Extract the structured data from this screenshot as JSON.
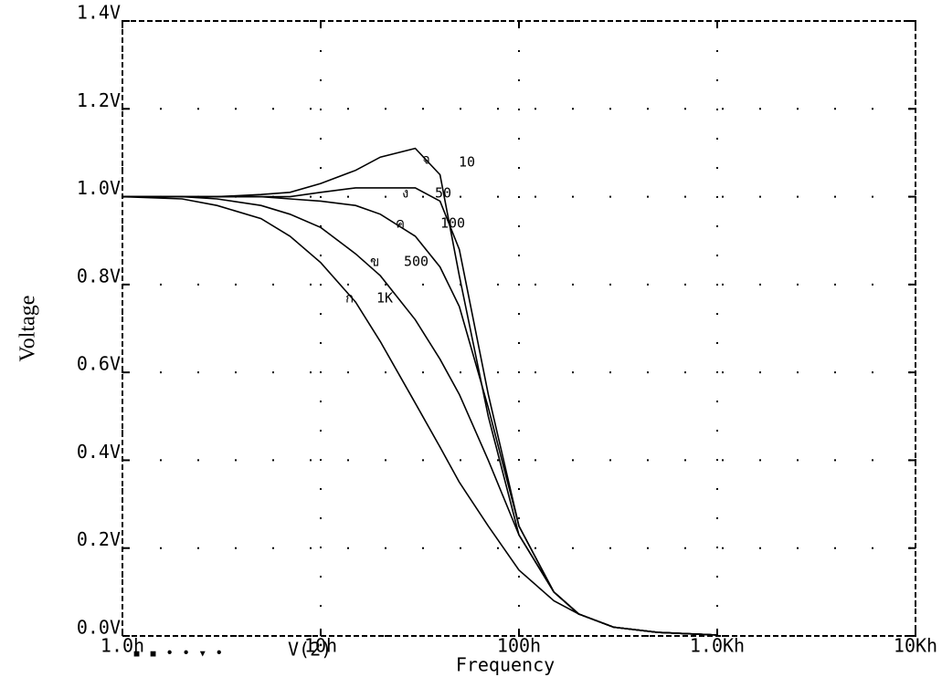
{
  "chart_data": {
    "type": "line",
    "xlabel": "Frequency",
    "ylabel": "Voltage",
    "xscale": "log",
    "x": [
      1,
      2,
      3,
      5,
      7,
      10,
      15,
      20,
      30,
      40,
      50,
      70,
      100,
      150,
      200,
      300,
      500,
      1000
    ],
    "series": [
      {
        "name": "10",
        "marker_label": "จ",
        "color": "#000000",
        "values": [
          1,
          1,
          1,
          1.005,
          1.01,
          1.03,
          1.06,
          1.09,
          1.11,
          1.05,
          0.82,
          0.5,
          0.23,
          0.1,
          0.05,
          0.02,
          0.008,
          0.002
        ]
      },
      {
        "name": "50",
        "marker_label": "ง",
        "color": "#000000",
        "values": [
          1,
          1,
          1,
          1,
          1,
          1.01,
          1.02,
          1.02,
          1.02,
          0.99,
          0.88,
          0.55,
          0.25,
          0.1,
          0.05,
          0.02,
          0.008,
          0.002
        ]
      },
      {
        "name": "100",
        "marker_label": "ค",
        "color": "#000000",
        "values": [
          1,
          1,
          1,
          1,
          0.995,
          0.99,
          0.98,
          0.96,
          0.91,
          0.84,
          0.75,
          0.52,
          0.25,
          0.1,
          0.05,
          0.02,
          0.008,
          0.002
        ]
      },
      {
        "name": "500",
        "marker_label": "ข",
        "color": "#000000",
        "values": [
          1,
          1,
          0.995,
          0.98,
          0.96,
          0.93,
          0.87,
          0.82,
          0.72,
          0.63,
          0.55,
          0.4,
          0.23,
          0.1,
          0.05,
          0.02,
          0.008,
          0.002
        ]
      },
      {
        "name": "1K",
        "marker_label": "ก",
        "color": "#000000",
        "values": [
          1,
          0.995,
          0.98,
          0.95,
          0.91,
          0.85,
          0.76,
          0.67,
          0.53,
          0.43,
          0.35,
          0.25,
          0.15,
          0.08,
          0.05,
          0.02,
          0.008,
          0.002
        ]
      }
    ],
    "legend": "V(2)",
    "xlim": [
      1,
      10000
    ],
    "xticks": [
      {
        "value": 1,
        "label": "1.0h"
      },
      {
        "value": 10,
        "label": "10h"
      },
      {
        "value": 100,
        "label": "100h"
      },
      {
        "value": 1000,
        "label": "1.0Kh"
      },
      {
        "value": 10000,
        "label": "10Kh"
      }
    ],
    "ylim": [
      0,
      1.4
    ],
    "yticks": [
      {
        "value": 0,
        "label": "0.0V"
      },
      {
        "value": 0.2,
        "label": "0.2V"
      },
      {
        "value": 0.4,
        "label": "0.4V"
      },
      {
        "value": 0.6,
        "label": "0.6V"
      },
      {
        "value": 0.8,
        "label": "0.8V"
      },
      {
        "value": 1.0,
        "label": "1.0V"
      },
      {
        "value": 1.2,
        "label": "1.2V"
      },
      {
        "value": 1.4,
        "label": "1.4V"
      }
    ],
    "grid": true
  }
}
